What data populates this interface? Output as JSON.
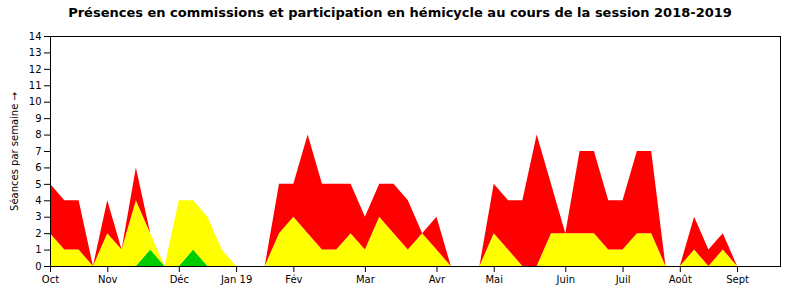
{
  "chart_data": {
    "type": "area",
    "title": "Présences en commissions et participation en hémicycle au cours de la session 2018-2019",
    "ylabel": "Séances par semaine",
    "stacked": true,
    "grid": false,
    "x": [
      0,
      1,
      2,
      3,
      4,
      5,
      6,
      7,
      8,
      9,
      10,
      11,
      12,
      13,
      14,
      15,
      16,
      17,
      18,
      19,
      20,
      21,
      22,
      23,
      24,
      25,
      26,
      27,
      28,
      29,
      30,
      31,
      32,
      33,
      34,
      35,
      36,
      37,
      38,
      39,
      40,
      41,
      42,
      43,
      44,
      45,
      46,
      47,
      48,
      49,
      50,
      51
    ],
    "xlim": [
      0,
      51
    ],
    "xticks": [
      {
        "value": 0,
        "label": "Oct"
      },
      {
        "value": 4,
        "label": "Nov"
      },
      {
        "value": 9,
        "label": "Déc"
      },
      {
        "value": 13,
        "label": "Jan 19"
      },
      {
        "value": 17,
        "label": "Fév"
      },
      {
        "value": 22,
        "label": "Mar"
      },
      {
        "value": 27,
        "label": "Avr"
      },
      {
        "value": 31,
        "label": "Mai"
      },
      {
        "value": 36,
        "label": "Juin"
      },
      {
        "value": 40,
        "label": "Juil"
      },
      {
        "value": 44,
        "label": "Août"
      },
      {
        "value": 48,
        "label": "Sept"
      }
    ],
    "ylim": [
      0,
      14
    ],
    "yticks": [
      0,
      1,
      2,
      3,
      4,
      5,
      6,
      7,
      8,
      9,
      10,
      11,
      12,
      13,
      14
    ],
    "series": [
      {
        "color": "#00cc00",
        "values": [
          0,
          0,
          0,
          0,
          0,
          0,
          0,
          1,
          0,
          0,
          1,
          0,
          0,
          0,
          0,
          0,
          0,
          0,
          0,
          0,
          0,
          0,
          0,
          0,
          0,
          0,
          0,
          0,
          0,
          0,
          0,
          0,
          0,
          0,
          0,
          0,
          0,
          0,
          0,
          0,
          0,
          0,
          0,
          0,
          0,
          0,
          0,
          0,
          0,
          0,
          0,
          0
        ]
      },
      {
        "color": "#ffff00",
        "values": [
          2,
          1,
          1,
          0,
          2,
          1,
          4,
          1,
          0,
          4,
          3,
          3,
          1,
          0,
          0,
          0,
          2,
          3,
          2,
          1,
          1,
          2,
          1,
          3,
          2,
          1,
          2,
          1,
          0,
          0,
          0,
          2,
          1,
          0,
          0,
          2,
          2,
          2,
          2,
          1,
          1,
          2,
          2,
          0,
          0,
          1,
          0,
          1,
          0,
          0,
          0,
          0
        ]
      },
      {
        "color": "#ff0000",
        "values": [
          3,
          3,
          3,
          0,
          2,
          0,
          2,
          0,
          0,
          0,
          0,
          0,
          0,
          0,
          0,
          0,
          3,
          2,
          6,
          4,
          4,
          3,
          2,
          2,
          3,
          3,
          0,
          2,
          0,
          0,
          0,
          3,
          3,
          4,
          8,
          3,
          0,
          5,
          5,
          3,
          3,
          5,
          5,
          0,
          0,
          2,
          1,
          1,
          0,
          0,
          0,
          0
        ]
      }
    ]
  }
}
